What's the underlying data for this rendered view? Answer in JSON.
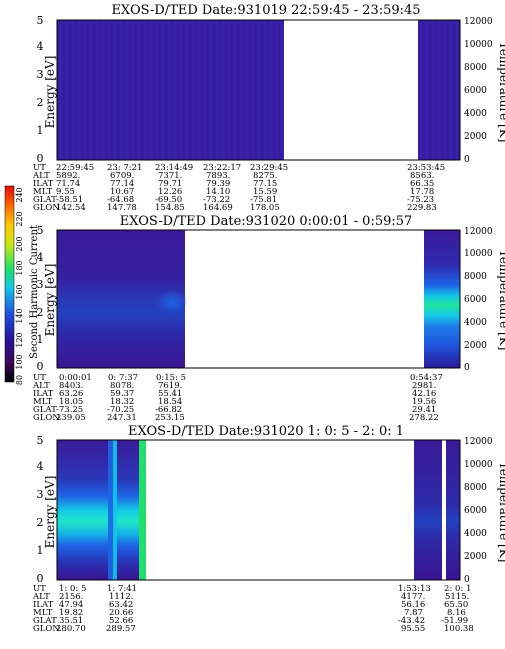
{
  "figure": {
    "colorbar": {
      "label": "Second Harmonic Current",
      "ticks": [
        "80",
        "100",
        "120",
        "140",
        "160",
        "180",
        "200",
        "220",
        "240"
      ],
      "colors": [
        "#000000",
        "#3a0a58",
        "#1e1ea0",
        "#1e64e6",
        "#14c8e6",
        "#20e06a",
        "#c8e614",
        "#ffc800",
        "#ff6400",
        "#e60a0a"
      ]
    },
    "orbit_row_labels": [
      "UT",
      "ALT",
      "ILAT",
      "MLT",
      "GLAT",
      "GLON"
    ]
  },
  "chart_data": [
    {
      "type": "heatmap",
      "title": "EXOS-D/TED   Date:931019  22:59:45 - 23:59:45",
      "ylabel": "Energy [eV]",
      "ylabel_right": "Temperature [K]",
      "ylim": [
        0,
        5
      ],
      "yticks": [
        "0",
        "1",
        "2",
        "3",
        "4",
        "5"
      ],
      "ylim_right": [
        0,
        12000
      ],
      "yticks_right": [
        "0",
        "2000",
        "4000",
        "6000",
        "8000",
        "10000",
        "12000"
      ],
      "data_segments": [
        [
          0,
          0.555
        ],
        [
          0.92,
          1
        ]
      ],
      "colormap_note": "uniform low levels (~100-110) across all energies",
      "orbit_columns": [
        {
          "UT": "22:59:45",
          "ALT": "5892.",
          "ILAT": "71.74",
          "MLT": "9.55",
          "GLAT": "-58.51",
          "GLON": "142.54"
        },
        {
          "UT": "23: 7:21",
          "ALT": "6709.",
          "ILAT": "77.14",
          "MLT": "10.67",
          "GLAT": "-64.68",
          "GLON": "147.78"
        },
        {
          "UT": "23:14:49",
          "ALT": "7371.",
          "ILAT": "79.71",
          "MLT": "12.26",
          "GLAT": "-69.50",
          "GLON": "154.85"
        },
        {
          "UT": "23:22:17",
          "ALT": "7893.",
          "ILAT": "79.39",
          "MLT": "14.10",
          "GLAT": "-73.22",
          "GLON": "164.69"
        },
        {
          "UT": "23:29:45",
          "ALT": "8275.",
          "ILAT": "77.15",
          "MLT": "15.59",
          "GLAT": "-75.81",
          "GLON": "178.05"
        },
        {
          "UT": "23:53:45",
          "ALT": "8563.",
          "ILAT": "66.35",
          "MLT": "17.78",
          "GLAT": "-75.23",
          "GLON": "229.83"
        }
      ]
    },
    {
      "type": "heatmap",
      "title": "EXOS-D/TED   Date:931020  0:00:01 - 0:59:57",
      "ylabel": "Energy [eV]",
      "ylabel_right": "Temperature [K]",
      "ylim": [
        0,
        5
      ],
      "yticks": [
        "0",
        "1",
        "2",
        "3",
        "4",
        "5"
      ],
      "ylim_right": [
        0,
        12000
      ],
      "yticks_right": [
        "0",
        "2000",
        "4000",
        "6000",
        "8000",
        "10000",
        "12000"
      ],
      "data_segments": [
        [
          0,
          0.36
        ],
        [
          0.93,
          1
        ]
      ],
      "colormap_note": "enhanced band near 2-2.5 eV (up to ~150-160), strongest at right segment",
      "orbit_columns": [
        {
          "UT": "0:00:01",
          "ALT": "8403.",
          "ILAT": "63.26",
          "MLT": "18.05",
          "GLAT": "-73.25",
          "GLON": "239.05"
        },
        {
          "UT": "0: 7:37",
          "ALT": "8078.",
          "ILAT": "59.37",
          "MLT": "18.32",
          "GLAT": "-70.25",
          "GLON": "247.31"
        },
        {
          "UT": "0:15: 5",
          "ALT": "7619.",
          "ILAT": "55.41",
          "MLT": "18.54",
          "GLAT": "-66.82",
          "GLON": "253.15"
        },
        {
          "UT": "0:54:37",
          "ALT": "2981.",
          "ILAT": "42.16",
          "MLT": "19.56",
          "GLAT": "29.41",
          "GLON": "278.22"
        }
      ]
    },
    {
      "type": "heatmap",
      "title": "EXOS-D/TED   Date:931020  1: 0: 5 - 2: 0: 1",
      "ylabel": "Energy [eV]",
      "ylabel_right": "Temperature [K]",
      "ylim": [
        0,
        5
      ],
      "yticks": [
        "0",
        "1",
        "2",
        "3",
        "4",
        "5"
      ],
      "ylim_right": [
        0,
        12000
      ],
      "yticks_right": [
        "0",
        "2000",
        "4000",
        "6000",
        "8000",
        "10000",
        "12000"
      ],
      "data_segments": [
        [
          0,
          0.235
        ],
        [
          0.885,
          0.975
        ]
      ],
      "colormap_note": "strong band 1.5-2.5 eV (~150-170) on left, bright green column near 1:08",
      "orbit_columns": [
        {
          "UT": "1: 0: 5",
          "ALT": "2156.",
          "ILAT": "47.94",
          "MLT": "19.82",
          "GLAT": "35.51",
          "GLON": "280.70"
        },
        {
          "UT": "1: 7:41",
          "ALT": "1112.",
          "ILAT": "63.42",
          "MLT": "20.66",
          "GLAT": "52.66",
          "GLON": "289.57"
        },
        {
          "UT": "1:53:13",
          "ALT": "4177.",
          "ILAT": "56.16",
          "MLT": "7.87",
          "GLAT": "-43.42",
          "GLON": "95.55"
        },
        {
          "UT": "2: 0: 1",
          "ALT": "5115.",
          "ILAT": "65.50",
          "MLT": "8.16",
          "GLAT": "-51.99",
          "GLON": "100.38"
        }
      ]
    }
  ]
}
